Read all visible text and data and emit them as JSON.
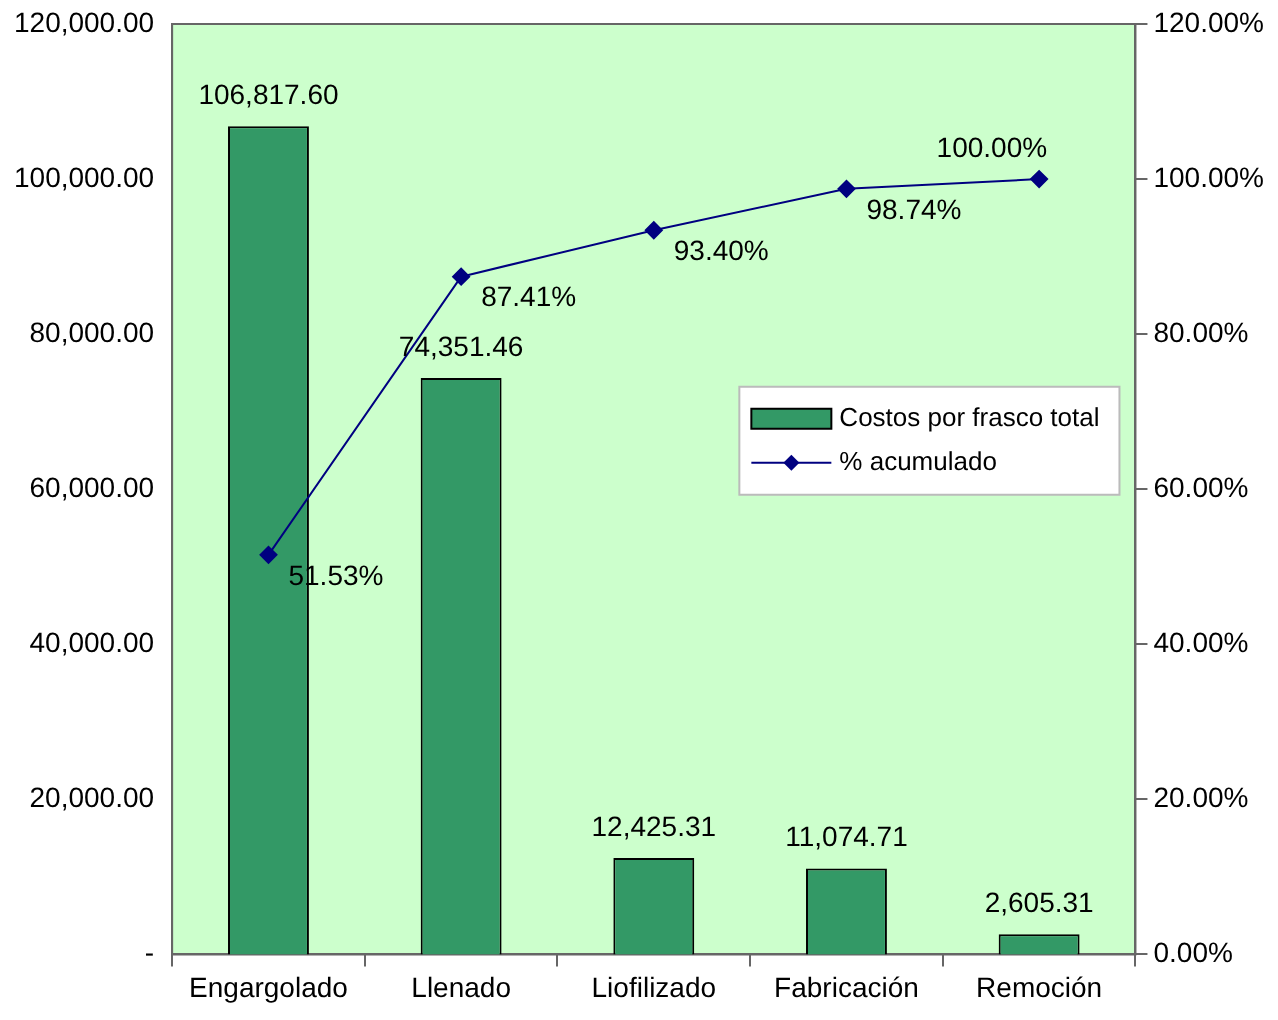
{
  "chart_data": {
    "type": "bar",
    "categories": [
      "Engargolado",
      "Llenado",
      "Liofilizado",
      "Fabricación",
      "Remoción"
    ],
    "series": [
      {
        "name": "Costos por frasco total",
        "color": "#339966",
        "values": [
          106817.6,
          74351.46,
          12425.31,
          11074.71,
          2605.31
        ],
        "value_labels": [
          "106,817.60",
          "74,351.46",
          "12,425.31",
          "11,074.71",
          "2,605.31"
        ]
      },
      {
        "name": "% acumulado",
        "type": "line",
        "axis": "y2",
        "color": "#000080",
        "marker": "diamond",
        "values": [
          51.53,
          87.41,
          93.4,
          98.74,
          100
        ],
        "value_labels": [
          "51.53%",
          "87.41%",
          "93.40%",
          "98.74%",
          "100.00%"
        ]
      }
    ],
    "ylim": [
      0,
      120000
    ],
    "yticks": [
      {
        "value": 0,
        "label": "-"
      },
      {
        "value": 20000,
        "label": "20,000.00"
      },
      {
        "value": 40000,
        "label": "40,000.00"
      },
      {
        "value": 60000,
        "label": "60,000.00"
      },
      {
        "value": 80000,
        "label": "80,000.00"
      },
      {
        "value": 100000,
        "label": "100,000.00"
      },
      {
        "value": 120000,
        "label": "120,000.00"
      }
    ],
    "y2lim": [
      0,
      120
    ],
    "y2ticks": [
      {
        "value": 0,
        "label": "0.00%"
      },
      {
        "value": 20,
        "label": "20.00%"
      },
      {
        "value": 40,
        "label": "40.00%"
      },
      {
        "value": 60,
        "label": "60.00%"
      },
      {
        "value": 80,
        "label": "80.00%"
      },
      {
        "value": 100,
        "label": "100.00%"
      },
      {
        "value": 120,
        "label": "120.00%"
      }
    ],
    "grid": false,
    "legend": "right"
  }
}
